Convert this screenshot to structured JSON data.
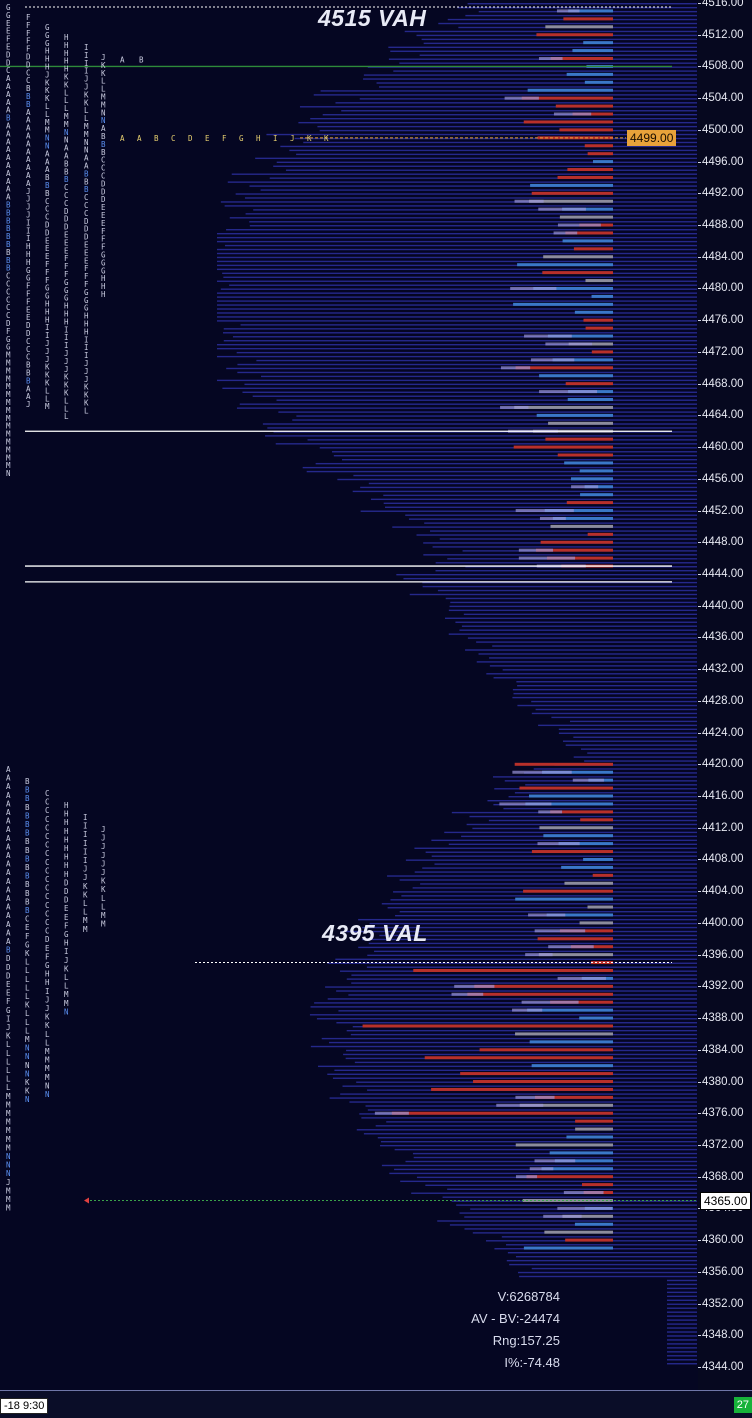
{
  "chart": {
    "price_axis": {
      "ticks": [
        "4516.00",
        "4512.00",
        "4508.00",
        "4504.00",
        "4500.00",
        "4496.00",
        "4492.00",
        "4488.00",
        "4484.00",
        "4480.00",
        "4476.00",
        "4472.00",
        "4468.00",
        "4464.00",
        "4460.00",
        "4456.00",
        "4452.00",
        "4448.00",
        "4444.00",
        "4440.00",
        "4436.00",
        "4432.00",
        "4428.00",
        "4424.00",
        "4420.00",
        "4416.00",
        "4412.00",
        "4408.00",
        "4404.00",
        "4400.00",
        "4396.00",
        "4392.00",
        "4388.00",
        "4384.00",
        "4380.00",
        "4376.00",
        "4372.00",
        "4368.00",
        "4364.00",
        "4360.00",
        "4356.00",
        "4352.00",
        "4348.00",
        "4344.00"
      ],
      "top_price": 4516,
      "bottom_price": 4344
    },
    "levels": {
      "vah_label": "4515 VAH",
      "vah_price": 4515,
      "val_label": "4395 VAL",
      "val_price": 4395
    },
    "poc_price_label": "4499.00",
    "poc_price": 4499,
    "current_price_label": "4365.00",
    "current_price": 4365,
    "horizontal_lines": [
      4508,
      4462,
      4445,
      4443
    ],
    "colors": {
      "background": "#050622",
      "profile_fill": "#2b2f9e",
      "buy_bar": "#3a78c8",
      "sell_bar": "#b8302a",
      "gray_bar": "#8c8c9c",
      "light_bar": "#9a96d8",
      "poc_line": "#e8a23a"
    }
  },
  "tpo_columns": {
    "upper": [
      "GGEEFEDDCAAAAABAAAAAAAAAABBBBBBBBBCCCCCCDFGGMMMMMMMMMMMMMMMN",
      "FFFFFDDCCBBBAAAAAAAAAAJJJJIIIHHHGGFFFEEDDCCCBBBAAJ",
      "GGGHHHJKKKLLMMNNAAABBBCCCDDEEEFFFGGHHHIIJJJKKKLLM",
      "HHHHHKKLLLMMNNAABBBCCCDDDEEEFFFGGGHHHIIIJJJKKKLLL",
      "IIIIJJKKLLMMNNAABBBCCCDDDEEEFFFGGGHHHIIIJJJKKKL",
      "JKKLLMMNNABBBCCCDDDEEEFFFGGGHHH"
    ],
    "upper_row": "A B",
    "poc_row": "A A B C D E F G H I J K K",
    "lower": [
      "AAAAAAAAAAAAAAAAAAAAABDDDEEFGIJKLLLLLLMMMMMMMNNNJMMM",
      "BBBBBBBBBBBBBBBBCEFGKLLLLLKLLLMNNNNKKN",
      "CCCCCCCCCCCCCCCCCDEFGHHIJJKKLLMMMMNN",
      "HHHHHHHHHDDDEEFGHIJKLLMMN",
      "IIIIIIJJKKLLMM",
      "JJJJJJKKLLMM"
    ]
  },
  "stats": {
    "volume": "V:6268784",
    "av_bv": "AV - BV:-24474",
    "range": "Rng:157.25",
    "i_pct": "I%:-74.48"
  },
  "statusbar": {
    "timestamp": "-18  9:30",
    "corner": "27"
  }
}
